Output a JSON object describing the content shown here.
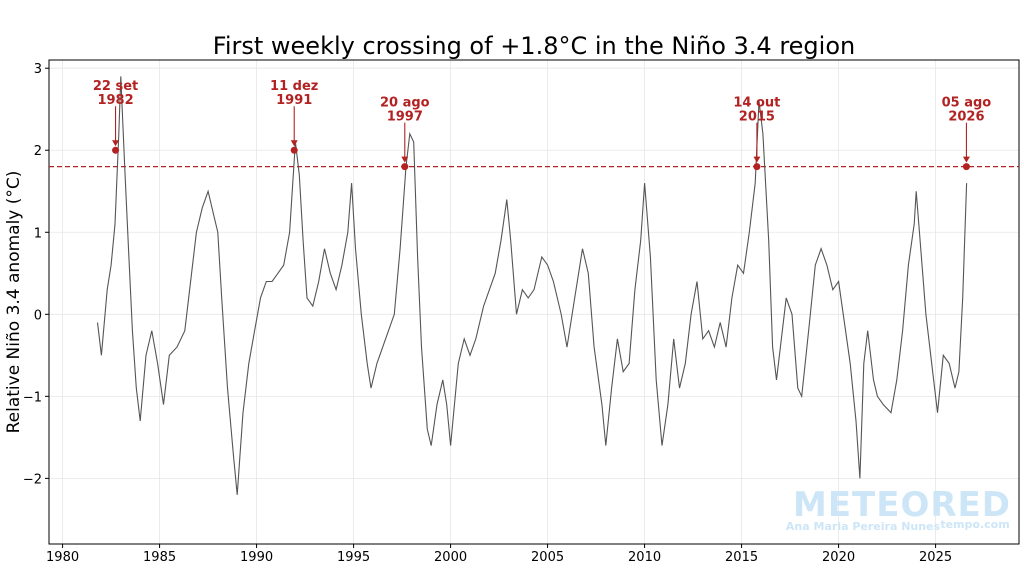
{
  "chart_data": {
    "type": "line",
    "title": "First weekly crossing of +1.8°C in the Niño 3.4 region",
    "xlabel": "",
    "ylabel": "Relative Niño 3.4 anomaly (°C)",
    "xlim": [
      1979.3,
      2029.3
    ],
    "ylim": [
      -2.8,
      3.1
    ],
    "x_ticks": [
      1980,
      1985,
      1990,
      1995,
      2000,
      2005,
      2010,
      2015,
      2020,
      2025
    ],
    "x_tick_labels": [
      "1980",
      "1985",
      "1990",
      "1995",
      "2000",
      "2005",
      "2010",
      "2015",
      "2020",
      "2025"
    ],
    "y_ticks": [
      -2,
      -1,
      0,
      1,
      2,
      3
    ],
    "y_tick_labels": [
      "−2",
      "−1",
      "0",
      "1",
      "2",
      "3"
    ],
    "grid": true,
    "threshold": {
      "value": 1.8,
      "color": "#b22222",
      "style": "dashed"
    },
    "series": [
      {
        "color": "#555555",
        "points": [
          [
            1981.8,
            -0.1
          ],
          [
            1982.0,
            -0.5
          ],
          [
            1982.3,
            0.3
          ],
          [
            1982.5,
            0.6
          ],
          [
            1982.7,
            1.1
          ],
          [
            1982.9,
            2.2
          ],
          [
            1983.0,
            2.9
          ],
          [
            1983.2,
            1.8
          ],
          [
            1983.4,
            0.8
          ],
          [
            1983.6,
            -0.2
          ],
          [
            1983.8,
            -0.9
          ],
          [
            1984.0,
            -1.3
          ],
          [
            1984.3,
            -0.5
          ],
          [
            1984.6,
            -0.2
          ],
          [
            1984.9,
            -0.6
          ],
          [
            1985.2,
            -1.1
          ],
          [
            1985.5,
            -0.5
          ],
          [
            1985.9,
            -0.4
          ],
          [
            1986.3,
            -0.2
          ],
          [
            1986.6,
            0.4
          ],
          [
            1986.9,
            1.0
          ],
          [
            1987.2,
            1.3
          ],
          [
            1987.5,
            1.5
          ],
          [
            1987.8,
            1.2
          ],
          [
            1988.0,
            1.0
          ],
          [
            1988.2,
            0.2
          ],
          [
            1988.5,
            -0.9
          ],
          [
            1988.8,
            -1.7
          ],
          [
            1989.0,
            -2.2
          ],
          [
            1989.3,
            -1.2
          ],
          [
            1989.6,
            -0.6
          ],
          [
            1989.9,
            -0.2
          ],
          [
            1990.2,
            0.2
          ],
          [
            1990.5,
            0.4
          ],
          [
            1990.8,
            0.4
          ],
          [
            1991.1,
            0.5
          ],
          [
            1991.4,
            0.6
          ],
          [
            1991.7,
            1.0
          ],
          [
            1992.0,
            2.1
          ],
          [
            1992.2,
            1.7
          ],
          [
            1992.4,
            0.9
          ],
          [
            1992.6,
            0.2
          ],
          [
            1992.9,
            0.1
          ],
          [
            1993.2,
            0.4
          ],
          [
            1993.5,
            0.8
          ],
          [
            1993.8,
            0.5
          ],
          [
            1994.1,
            0.3
          ],
          [
            1994.4,
            0.6
          ],
          [
            1994.7,
            1.0
          ],
          [
            1994.9,
            1.6
          ],
          [
            1995.1,
            0.8
          ],
          [
            1995.4,
            0.0
          ],
          [
            1995.7,
            -0.6
          ],
          [
            1995.9,
            -0.9
          ],
          [
            1996.2,
            -0.6
          ],
          [
            1996.5,
            -0.4
          ],
          [
            1996.8,
            -0.2
          ],
          [
            1997.1,
            0.0
          ],
          [
            1997.4,
            0.8
          ],
          [
            1997.7,
            1.8
          ],
          [
            1997.9,
            2.2
          ],
          [
            1998.1,
            2.1
          ],
          [
            1998.3,
            0.7
          ],
          [
            1998.5,
            -0.4
          ],
          [
            1998.8,
            -1.4
          ],
          [
            1999.0,
            -1.6
          ],
          [
            1999.3,
            -1.1
          ],
          [
            1999.6,
            -0.8
          ],
          [
            1999.8,
            -1.1
          ],
          [
            2000.0,
            -1.6
          ],
          [
            2000.4,
            -0.6
          ],
          [
            2000.7,
            -0.3
          ],
          [
            2001.0,
            -0.5
          ],
          [
            2001.3,
            -0.3
          ],
          [
            2001.7,
            0.1
          ],
          [
            2002.0,
            0.3
          ],
          [
            2002.3,
            0.5
          ],
          [
            2002.6,
            0.9
          ],
          [
            2002.9,
            1.4
          ],
          [
            2003.1,
            0.9
          ],
          [
            2003.4,
            0.0
          ],
          [
            2003.7,
            0.3
          ],
          [
            2004.0,
            0.2
          ],
          [
            2004.3,
            0.3
          ],
          [
            2004.7,
            0.7
          ],
          [
            2005.0,
            0.6
          ],
          [
            2005.3,
            0.4
          ],
          [
            2005.7,
            0.0
          ],
          [
            2006.0,
            -0.4
          ],
          [
            2006.4,
            0.2
          ],
          [
            2006.8,
            0.8
          ],
          [
            2007.1,
            0.5
          ],
          [
            2007.4,
            -0.4
          ],
          [
            2007.8,
            -1.1
          ],
          [
            2008.0,
            -1.6
          ],
          [
            2008.3,
            -0.9
          ],
          [
            2008.6,
            -0.3
          ],
          [
            2008.9,
            -0.7
          ],
          [
            2009.2,
            -0.6
          ],
          [
            2009.5,
            0.3
          ],
          [
            2009.8,
            0.9
          ],
          [
            2010.0,
            1.6
          ],
          [
            2010.3,
            0.7
          ],
          [
            2010.6,
            -0.8
          ],
          [
            2010.9,
            -1.6
          ],
          [
            2011.2,
            -1.1
          ],
          [
            2011.5,
            -0.3
          ],
          [
            2011.8,
            -0.9
          ],
          [
            2012.1,
            -0.6
          ],
          [
            2012.4,
            0.0
          ],
          [
            2012.7,
            0.4
          ],
          [
            2013.0,
            -0.3
          ],
          [
            2013.3,
            -0.2
          ],
          [
            2013.6,
            -0.4
          ],
          [
            2013.9,
            -0.1
          ],
          [
            2014.2,
            -0.4
          ],
          [
            2014.5,
            0.2
          ],
          [
            2014.8,
            0.6
          ],
          [
            2015.1,
            0.5
          ],
          [
            2015.4,
            1.0
          ],
          [
            2015.7,
            1.6
          ],
          [
            2015.9,
            2.6
          ],
          [
            2016.1,
            2.2
          ],
          [
            2016.4,
            0.9
          ],
          [
            2016.6,
            -0.4
          ],
          [
            2016.8,
            -0.8
          ],
          [
            2017.0,
            -0.4
          ],
          [
            2017.3,
            0.2
          ],
          [
            2017.6,
            0.0
          ],
          [
            2017.9,
            -0.9
          ],
          [
            2018.1,
            -1.0
          ],
          [
            2018.5,
            -0.1
          ],
          [
            2018.8,
            0.6
          ],
          [
            2019.1,
            0.8
          ],
          [
            2019.4,
            0.6
          ],
          [
            2019.7,
            0.3
          ],
          [
            2020.0,
            0.4
          ],
          [
            2020.3,
            -0.1
          ],
          [
            2020.6,
            -0.6
          ],
          [
            2020.9,
            -1.3
          ],
          [
            2021.1,
            -2.0
          ],
          [
            2021.3,
            -0.6
          ],
          [
            2021.5,
            -0.2
          ],
          [
            2021.8,
            -0.8
          ],
          [
            2022.0,
            -1.0
          ],
          [
            2022.3,
            -1.1
          ],
          [
            2022.7,
            -1.2
          ],
          [
            2023.0,
            -0.8
          ],
          [
            2023.3,
            -0.2
          ],
          [
            2023.6,
            0.6
          ],
          [
            2023.9,
            1.1
          ],
          [
            2024.0,
            1.5
          ],
          [
            2024.2,
            0.9
          ],
          [
            2024.5,
            0.0
          ],
          [
            2024.8,
            -0.6
          ],
          [
            2025.1,
            -1.2
          ],
          [
            2025.4,
            -0.5
          ],
          [
            2025.7,
            -0.6
          ],
          [
            2026.0,
            -0.9
          ],
          [
            2026.2,
            -0.7
          ],
          [
            2026.4,
            0.2
          ],
          [
            2026.6,
            1.6
          ]
        ]
      }
    ],
    "annotations": [
      {
        "lines": [
          "22 set",
          "1982"
        ],
        "x": 1982.73,
        "y": 2.0
      },
      {
        "lines": [
          "11 dez",
          "1991"
        ],
        "x": 1991.94,
        "y": 2.0
      },
      {
        "lines": [
          "20 ago",
          "1997"
        ],
        "x": 1997.64,
        "y": 1.8
      },
      {
        "lines": [
          "14 out",
          "2015"
        ],
        "x": 2015.79,
        "y": 1.8
      },
      {
        "lines": [
          "05 ago",
          "2026"
        ],
        "x": 2026.59,
        "y": 1.8
      }
    ]
  },
  "watermark": {
    "brand": "METEORED",
    "author": "Ana Maria Pereira Nunes",
    "site": "tempo.com"
  }
}
